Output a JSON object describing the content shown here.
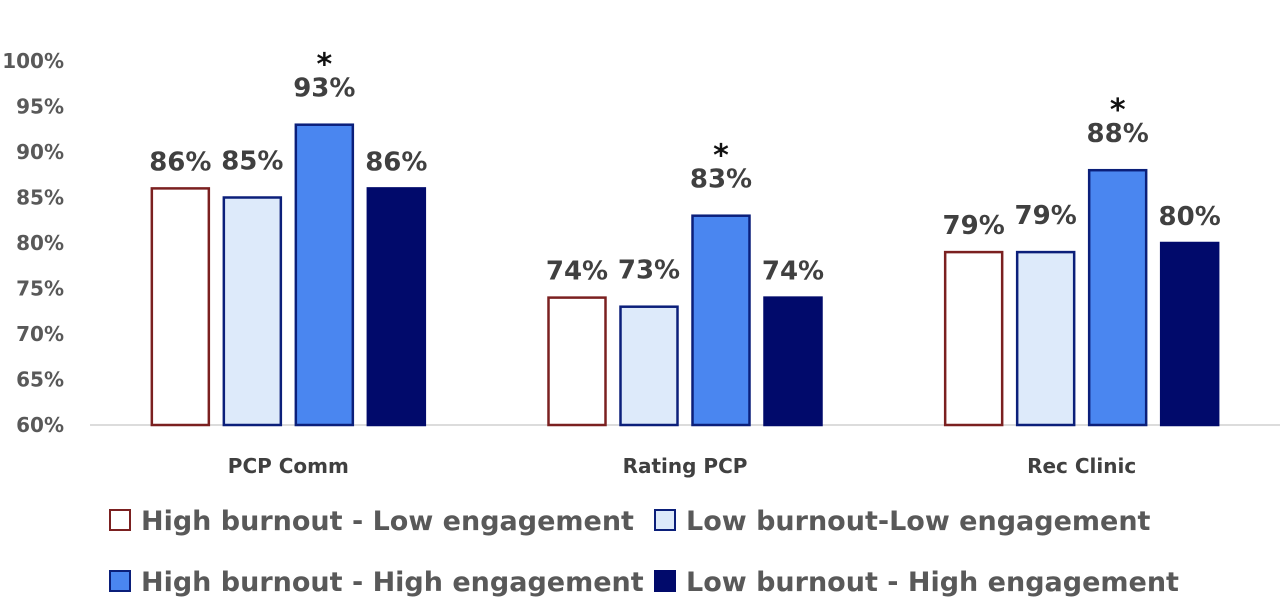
{
  "chart_data": {
    "type": "bar",
    "categories": [
      "PCP Comm",
      "Rating PCP",
      "Rec Clinic"
    ],
    "series": [
      {
        "name": "High burnout - Low engagement",
        "values": [
          86,
          74,
          79
        ],
        "labels": [
          "86%",
          "74%",
          "79%"
        ],
        "fill": "#ffffff",
        "stroke": "#7b2020"
      },
      {
        "name": "Low burnout-Low engagement",
        "values": [
          85,
          73,
          79
        ],
        "labels": [
          "85%",
          "73%",
          "79%"
        ],
        "fill": "#ddeafa",
        "stroke": "#0b1f7a"
      },
      {
        "name": "High burnout - High engagement",
        "values": [
          93,
          83,
          88
        ],
        "labels": [
          "93%",
          "83%",
          "88%"
        ],
        "fill": "#4a86f0",
        "stroke": "#0b1f7a"
      },
      {
        "name": "Low burnout - High engagement",
        "values": [
          86,
          74,
          80
        ],
        "labels": [
          "86%",
          "74%",
          "80%"
        ],
        "fill": "#010a6b",
        "stroke": "#010a6b"
      }
    ],
    "ylim": [
      60,
      100
    ],
    "yticks": [
      60,
      65,
      70,
      75,
      80,
      85,
      90,
      95,
      100
    ],
    "ytick_labels": [
      "60%",
      "65%",
      "70%",
      "75%",
      "80%",
      "85%",
      "90%",
      "95%",
      "100%"
    ],
    "significance_marker": "*",
    "significant_bars": [
      {
        "category": 0,
        "series": 2
      },
      {
        "category": 1,
        "series": 2
      },
      {
        "category": 2,
        "series": 2
      }
    ],
    "legend_position": "bottom",
    "grid": false
  }
}
